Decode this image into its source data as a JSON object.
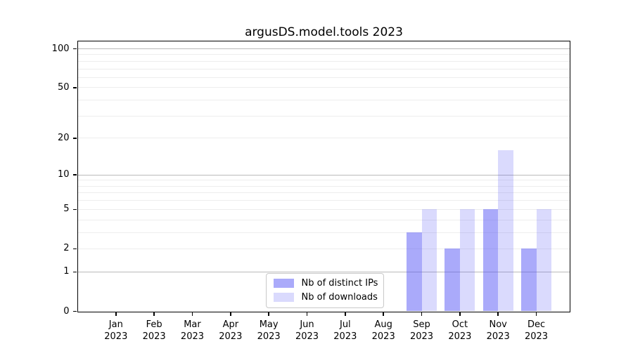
{
  "title": "argusDS.model.tools 2023",
  "chart_data": {
    "type": "bar",
    "title": "argusDS.model.tools 2023",
    "categories": [
      "Jan",
      "Feb",
      "Mar",
      "Apr",
      "May",
      "Jun",
      "Jul",
      "Aug",
      "Sep",
      "Oct",
      "Nov",
      "Dec"
    ],
    "x_year_label": "2023",
    "series": [
      {
        "name": "Nb of distinct IPs",
        "color": "rgba(85,85,245,0.5)",
        "color_hex": "#aaaaf9",
        "values": [
          0,
          0,
          0,
          0,
          0,
          0,
          0,
          0,
          3,
          2,
          5,
          2
        ]
      },
      {
        "name": "Nb of downloads",
        "color": "rgba(85,85,245,0.22)",
        "color_hex": "#dcdcfb",
        "values": [
          0,
          0,
          0,
          0,
          0,
          0,
          0,
          0,
          5,
          5,
          16,
          5
        ]
      }
    ],
    "xlabel": "",
    "ylabel": "",
    "y_axis": {
      "scale": "symlog",
      "ylim": [
        0,
        115
      ],
      "tick_values": [
        0,
        1,
        2,
        5,
        10,
        20,
        50,
        100
      ],
      "tick_labels": [
        "0",
        "1",
        "2",
        "5",
        "10",
        "20",
        "50",
        "100"
      ],
      "major_grid_values": [
        1,
        10,
        100
      ],
      "minor_grid_values": [
        2,
        3,
        4,
        5,
        6,
        7,
        8,
        9,
        20,
        30,
        40,
        50,
        60,
        70,
        80,
        90
      ]
    },
    "legend": {
      "position": "lower center",
      "items": [
        "Nb of distinct IPs",
        "Nb of downloads"
      ]
    },
    "grid": true
  },
  "colors": {
    "bar_distinct_ips": "rgba(85,85,245,0.5)",
    "bar_downloads": "rgba(85,85,245,0.22)",
    "major_grid": "#b9b9b9",
    "minor_grid": "#ededed",
    "spine": "#000000",
    "background": "#ffffff"
  }
}
